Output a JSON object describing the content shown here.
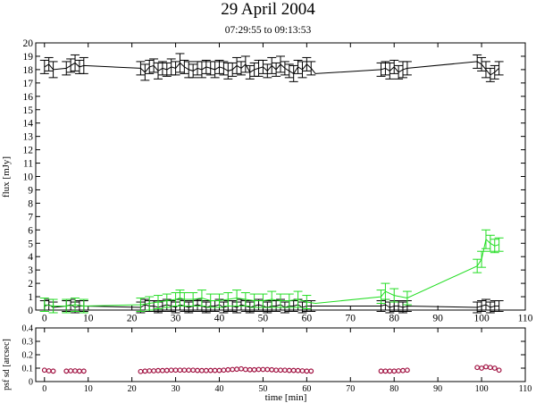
{
  "title": "29 April 2004",
  "subtitle": "07:29:55 to 09:13:53",
  "colors": {
    "axes": "#000000",
    "flux_1": "#000000",
    "flux_2": "#22dd22",
    "psf": "#a01040"
  },
  "chart_data": [
    {
      "type": "line",
      "ylabel": "flux [mJy]",
      "xlim": [
        -2,
        110
      ],
      "ylim": [
        0,
        20
      ],
      "xticks": [
        0,
        10,
        20,
        30,
        40,
        50,
        60,
        70,
        80,
        90,
        100,
        110
      ],
      "yticks": [
        0,
        1,
        2,
        3,
        4,
        5,
        6,
        7,
        8,
        9,
        10,
        11,
        12,
        13,
        14,
        15,
        16,
        17,
        18,
        19,
        20
      ],
      "error_bars": true,
      "series": [
        {
          "x": [
            0,
            1,
            2,
            5,
            6,
            7,
            8,
            9,
            22,
            23,
            24,
            25,
            26,
            27,
            28,
            29,
            30,
            31,
            32,
            33,
            34,
            35,
            36,
            37,
            38,
            39,
            40,
            41,
            42,
            43,
            44,
            45,
            46,
            47,
            48,
            49,
            50,
            51,
            52,
            53,
            54,
            55,
            56,
            57,
            58,
            59,
            60,
            61,
            62,
            77,
            78,
            79,
            80,
            81,
            82,
            83,
            99,
            100,
            101,
            102,
            103,
            104
          ],
          "y": [
            18.2,
            18.4,
            18.0,
            18.1,
            18.3,
            18.5,
            18.2,
            18.3,
            18.1,
            17.8,
            18.2,
            18.3,
            17.9,
            18.1,
            18.0,
            18.2,
            18.1,
            18.5,
            18.2,
            18.0,
            17.9,
            18.1,
            18.0,
            18.2,
            18.1,
            18.0,
            18.2,
            18.1,
            17.9,
            18.0,
            18.3,
            18.1,
            18.4,
            17.8,
            18.0,
            18.1,
            18.2,
            17.9,
            18.3,
            18.0,
            18.4,
            18.1,
            17.9,
            17.7,
            18.2,
            18.0,
            18.4,
            18.1,
            17.7,
            18.0,
            18.1,
            17.9,
            18.2,
            17.8,
            18.0,
            18.1,
            18.6,
            18.4,
            18.0,
            17.6,
            17.8,
            18.1
          ],
          "err": [
            0.5,
            0.5,
            0.6,
            0.5,
            0.5,
            0.6,
            0.5,
            0.6,
            0.5,
            0.6,
            0.5,
            0.5,
            0.6,
            0.5,
            0.5,
            0.6,
            0.5,
            0.7,
            0.5,
            0.6,
            0.5,
            0.5,
            0.6,
            0.5,
            0.5,
            0.6,
            0.5,
            0.5,
            0.6,
            0.5,
            0.6,
            0.5,
            0.6,
            0.5,
            0.5,
            0.6,
            0.5,
            0.5,
            0.6,
            0.5,
            0.6,
            0.5,
            0.5,
            0.6,
            0.5,
            0.6,
            0.5,
            0.5,
            0.0,
            0.5,
            0.5,
            0.6,
            0.5,
            0.5,
            0.6,
            0.5,
            0.5,
            0.5,
            0.6,
            0.5,
            0.5,
            0.5
          ]
        },
        {
          "x": [
            0,
            1,
            2,
            5,
            6,
            7,
            8,
            9,
            22,
            23,
            24,
            25,
            26,
            27,
            28,
            29,
            30,
            31,
            32,
            33,
            34,
            35,
            36,
            37,
            38,
            39,
            40,
            41,
            42,
            43,
            44,
            45,
            46,
            47,
            48,
            49,
            50,
            51,
            52,
            53,
            54,
            55,
            56,
            57,
            58,
            59,
            60,
            61,
            62,
            77,
            78,
            79,
            80,
            81,
            82,
            83,
            99,
            100,
            101,
            102,
            103,
            104
          ],
          "y": [
            0.3,
            0.4,
            0.2,
            0.3,
            0.4,
            0.2,
            0.3,
            0.3,
            0.2,
            0.4,
            0.3,
            0.3,
            0.2,
            0.3,
            0.4,
            0.3,
            0.2,
            0.4,
            0.3,
            0.2,
            0.3,
            0.4,
            0.3,
            0.2,
            0.3,
            0.3,
            0.4,
            0.2,
            0.3,
            0.3,
            0.2,
            0.4,
            0.3,
            0.2,
            0.3,
            0.4,
            0.3,
            0.2,
            0.3,
            0.3,
            0.4,
            0.2,
            0.3,
            0.3,
            0.4,
            0.2,
            0.3,
            0.3,
            0.3,
            0.3,
            0.4,
            0.2,
            0.3,
            0.3,
            0.2,
            0.3,
            0.2,
            0.3,
            0.4,
            0.2,
            0.3,
            0.3
          ],
          "err": [
            0.4,
            0.4,
            0.4,
            0.4,
            0.4,
            0.4,
            0.4,
            0.4,
            0.4,
            0.4,
            0.4,
            0.4,
            0.4,
            0.4,
            0.4,
            0.4,
            0.4,
            0.4,
            0.4,
            0.4,
            0.4,
            0.4,
            0.4,
            0.4,
            0.4,
            0.4,
            0.4,
            0.4,
            0.4,
            0.4,
            0.4,
            0.4,
            0.4,
            0.4,
            0.4,
            0.4,
            0.4,
            0.4,
            0.4,
            0.4,
            0.4,
            0.4,
            0.4,
            0.4,
            0.4,
            0.4,
            0.4,
            0.4,
            0.0,
            0.4,
            0.4,
            0.4,
            0.4,
            0.4,
            0.4,
            0.4,
            0.4,
            0.4,
            0.4,
            0.4,
            0.4,
            0.4
          ]
        },
        {
          "x": [
            0,
            2,
            5,
            7,
            9,
            22,
            24,
            26,
            28,
            30,
            31,
            32,
            34,
            36,
            38,
            40,
            42,
            44,
            46,
            48,
            50,
            52,
            54,
            56,
            58,
            60,
            62,
            77,
            78,
            80,
            83,
            99,
            100,
            101,
            102,
            103,
            104
          ],
          "y": [
            0.4,
            0.3,
            0.3,
            0.4,
            0.3,
            0.4,
            0.5,
            0.6,
            0.7,
            0.8,
            0.9,
            0.8,
            0.8,
            0.9,
            0.7,
            0.7,
            0.8,
            0.9,
            0.8,
            0.7,
            0.7,
            0.8,
            0.7,
            0.7,
            0.8,
            0.6,
            0.5,
            1.0,
            1.4,
            1.1,
            0.9,
            3.3,
            3.8,
            5.3,
            5.0,
            4.8,
            4.9
          ],
          "err": [
            0.5,
            0.5,
            0.5,
            0.5,
            0.5,
            0.5,
            0.5,
            0.5,
            0.5,
            0.5,
            0.6,
            0.5,
            0.5,
            0.6,
            0.5,
            0.5,
            0.5,
            0.6,
            0.5,
            0.5,
            0.5,
            0.6,
            0.5,
            0.5,
            0.6,
            0.5,
            0.0,
            0.5,
            0.6,
            0.5,
            0.5,
            0.5,
            0.6,
            0.7,
            0.6,
            0.5,
            0.5
          ]
        }
      ]
    },
    {
      "type": "scatter",
      "xlabel": "time [min]",
      "ylabel": "psf sd [arcsec]",
      "xlim": [
        -2,
        110
      ],
      "ylim": [
        0,
        0.4
      ],
      "xticks": [
        0,
        10,
        20,
        30,
        40,
        50,
        60,
        70,
        80,
        90,
        100,
        110
      ],
      "yticks": [
        "0",
        "0.1",
        "0.2",
        "0.3",
        "0.4"
      ],
      "marker": "open-circle",
      "x": [
        0,
        1,
        2,
        5,
        6,
        7,
        8,
        9,
        22,
        23,
        24,
        25,
        26,
        27,
        28,
        29,
        30,
        31,
        32,
        33,
        34,
        35,
        36,
        37,
        38,
        39,
        40,
        41,
        42,
        43,
        44,
        45,
        46,
        47,
        48,
        49,
        50,
        51,
        52,
        53,
        54,
        55,
        56,
        57,
        58,
        59,
        60,
        61,
        77,
        78,
        79,
        80,
        81,
        82,
        83,
        99,
        100,
        101,
        102,
        103,
        104
      ],
      "y": [
        0.085,
        0.08,
        0.078,
        0.078,
        0.08,
        0.08,
        0.078,
        0.078,
        0.075,
        0.078,
        0.08,
        0.08,
        0.082,
        0.082,
        0.083,
        0.085,
        0.085,
        0.085,
        0.085,
        0.085,
        0.085,
        0.083,
        0.082,
        0.082,
        0.083,
        0.083,
        0.083,
        0.085,
        0.088,
        0.09,
        0.092,
        0.095,
        0.09,
        0.088,
        0.088,
        0.09,
        0.09,
        0.09,
        0.088,
        0.085,
        0.085,
        0.085,
        0.083,
        0.083,
        0.082,
        0.08,
        0.078,
        0.078,
        0.078,
        0.078,
        0.078,
        0.078,
        0.08,
        0.082,
        0.085,
        0.105,
        0.1,
        0.11,
        0.105,
        0.1,
        0.085
      ]
    }
  ]
}
